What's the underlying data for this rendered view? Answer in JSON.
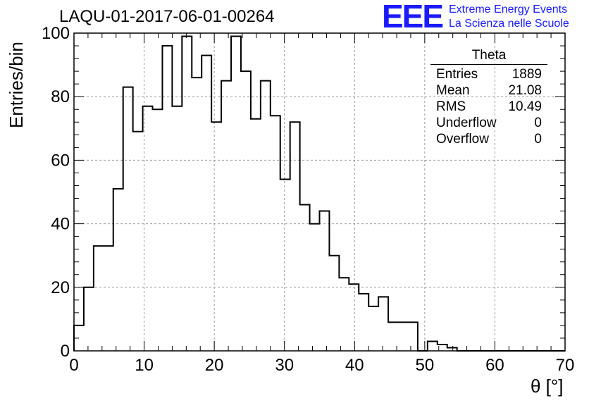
{
  "title": "LAQU-01-2017-06-01-00264",
  "logo": {
    "mark": "EEE",
    "line1": "Extreme Energy Events",
    "line2": "La Scienza nelle Scuole",
    "color": "#1a1aff"
  },
  "stats_box": {
    "name": "Theta",
    "rows": [
      {
        "label": "Entries",
        "value": "1889"
      },
      {
        "label": "Mean",
        "value": "21.08"
      },
      {
        "label": "RMS",
        "value": "10.49"
      },
      {
        "label": "Underflow",
        "value": "0"
      },
      {
        "label": "Overflow",
        "value": "0"
      }
    ]
  },
  "chart_data": {
    "type": "histogram",
    "title": "LAQU-01-2017-06-01-00264",
    "xlabel": "θ [°]",
    "ylabel": "Entries/bin",
    "xlim": [
      0,
      70
    ],
    "ylim": [
      0,
      100
    ],
    "grid": true,
    "bin_width": 1.4,
    "x_ticks": [
      0,
      10,
      20,
      30,
      40,
      50,
      60,
      70
    ],
    "y_ticks": [
      0,
      20,
      40,
      60,
      80,
      100
    ],
    "bin_edges_start": 0,
    "values": [
      8,
      20,
      33,
      33,
      51,
      83,
      69,
      77,
      76,
      96,
      77,
      99,
      86,
      93,
      72,
      85,
      99,
      88,
      73,
      85,
      74,
      54,
      72,
      46,
      40,
      44,
      30,
      23,
      21,
      18,
      14,
      17,
      9,
      9,
      9,
      0,
      3,
      2,
      1,
      0,
      0,
      0,
      0,
      0,
      0,
      0,
      0,
      0,
      0,
      0
    ]
  }
}
